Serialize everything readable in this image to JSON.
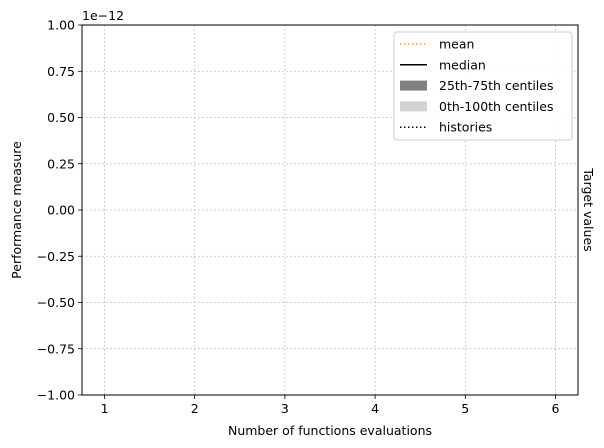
{
  "chart_data": {
    "type": "line",
    "title": "",
    "xlabel": "Number of functions evaluations",
    "ylabel": "Performance measure",
    "right_ylabel": "Target values",
    "y_offset_label": "1e−12",
    "xlim": [
      0.75,
      6.25
    ],
    "ylim": [
      -1.0,
      1.0
    ],
    "x_ticks": [
      1,
      2,
      3,
      4,
      5,
      6
    ],
    "x_tick_labels": [
      "1",
      "2",
      "3",
      "4",
      "5",
      "6"
    ],
    "y_ticks": [
      -1.0,
      -0.75,
      -0.5,
      -0.25,
      0.0,
      0.25,
      0.5,
      0.75,
      1.0
    ],
    "y_tick_labels": [
      "−1.00",
      "−0.75",
      "−0.50",
      "−0.25",
      "0.00",
      "0.25",
      "0.50",
      "0.75",
      "1.00"
    ],
    "grid": true,
    "legend_position": "top-right",
    "legend": [
      {
        "label": "mean",
        "kind": "dotted-line",
        "color": "#ffa500"
      },
      {
        "label": "median",
        "kind": "solid-line",
        "color": "#000000"
      },
      {
        "label": "25th-75th centiles",
        "kind": "patch",
        "color": "#808080"
      },
      {
        "label": "0th-100th centiles",
        "kind": "patch",
        "color": "#d3d3d3"
      },
      {
        "label": "histories",
        "kind": "dotted-line",
        "color": "#000000"
      }
    ],
    "series": []
  }
}
